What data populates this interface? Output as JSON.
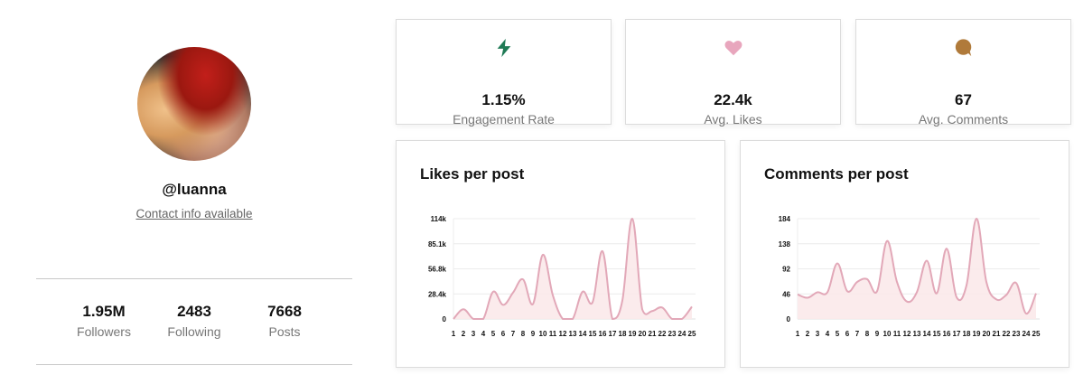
{
  "profile": {
    "handle": "@luanna",
    "contact_link": "Contact info available",
    "stats": [
      {
        "value": "1.95M",
        "label": "Followers"
      },
      {
        "value": "2483",
        "label": "Following"
      },
      {
        "value": "7668",
        "label": "Posts"
      }
    ]
  },
  "kpis": [
    {
      "icon": "lightning-icon",
      "color": "#1f7a55",
      "value": "1.15%",
      "label": "Engagement Rate"
    },
    {
      "icon": "heart-icon",
      "color": "#e8a6bd",
      "value": "22.4k",
      "label": "Avg. Likes"
    },
    {
      "icon": "comment-bubble-icon",
      "color": "#b07a3a",
      "value": "67",
      "label": "Avg. Comments"
    }
  ],
  "charts": {
    "likes_title": "Likes per post",
    "comments_title": "Comments per post"
  },
  "chart_data": [
    {
      "type": "area",
      "title": "Likes per post",
      "xlabel": "",
      "ylabel": "",
      "x": [
        1,
        2,
        3,
        4,
        5,
        6,
        7,
        8,
        9,
        10,
        11,
        12,
        13,
        14,
        15,
        16,
        17,
        18,
        19,
        20,
        21,
        22,
        23,
        24,
        25
      ],
      "values": [
        0,
        11000,
        0,
        0,
        31000,
        16000,
        30000,
        45000,
        17000,
        73000,
        27000,
        0,
        0,
        31000,
        19000,
        77000,
        0,
        21000,
        114000,
        11000,
        9000,
        13000,
        0,
        0,
        14000
      ],
      "y_ticks": [
        "0",
        "28.4k",
        "56.8k",
        "85.1k",
        "114k"
      ],
      "ylim": [
        0,
        114000
      ],
      "grid": true,
      "color": "#e2a8b8"
    },
    {
      "type": "area",
      "title": "Comments per post",
      "xlabel": "",
      "ylabel": "",
      "x": [
        1,
        2,
        3,
        4,
        5,
        6,
        7,
        8,
        9,
        10,
        11,
        12,
        13,
        14,
        15,
        16,
        17,
        18,
        19,
        20,
        21,
        22,
        23,
        24,
        25
      ],
      "values": [
        45,
        39,
        49,
        49,
        102,
        51,
        68,
        73,
        51,
        143,
        68,
        32,
        49,
        107,
        47,
        129,
        40,
        62,
        184,
        68,
        36,
        44,
        66,
        10,
        47
      ],
      "y_ticks": [
        "0",
        "46",
        "92",
        "138",
        "184"
      ],
      "ylim": [
        0,
        184
      ],
      "grid": true,
      "color": "#e2a8b8"
    }
  ]
}
